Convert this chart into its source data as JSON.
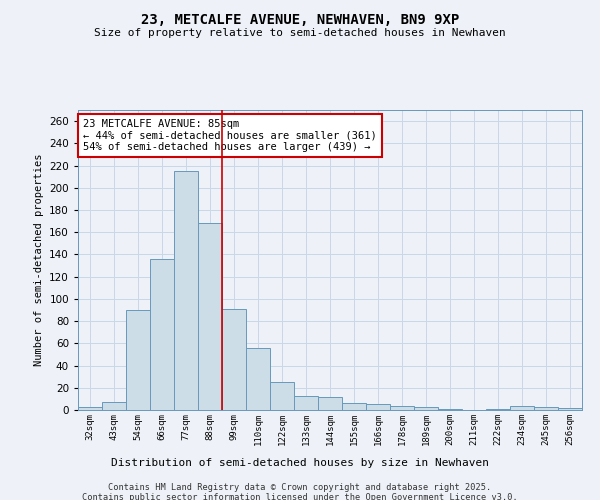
{
  "title": "23, METCALFE AVENUE, NEWHAVEN, BN9 9XP",
  "subtitle": "Size of property relative to semi-detached houses in Newhaven",
  "xlabel": "Distribution of semi-detached houses by size in Newhaven",
  "ylabel": "Number of semi-detached properties",
  "bin_labels": [
    "32sqm",
    "43sqm",
    "54sqm",
    "66sqm",
    "77sqm",
    "88sqm",
    "99sqm",
    "110sqm",
    "122sqm",
    "133sqm",
    "144sqm",
    "155sqm",
    "166sqm",
    "178sqm",
    "189sqm",
    "200sqm",
    "211sqm",
    "222sqm",
    "234sqm",
    "245sqm",
    "256sqm"
  ],
  "bar_values": [
    3,
    7,
    90,
    136,
    215,
    168,
    91,
    56,
    25,
    13,
    12,
    6,
    5,
    4,
    3,
    1,
    0,
    1,
    4,
    3,
    2
  ],
  "bar_color": "#ccdde8",
  "bar_edge_color": "#6699bb",
  "red_line_color": "#cc0000",
  "red_line_bin_index": 5,
  "annotation_title": "23 METCALFE AVENUE: 85sqm",
  "annotation_line1": "← 44% of semi-detached houses are smaller (361)",
  "annotation_line2": "54% of semi-detached houses are larger (439) →",
  "annotation_box_color": "#ffffff",
  "annotation_box_edge": "#cc0000",
  "grid_color": "#c8d8e8",
  "background_color": "#eef2f8",
  "footer_line1": "Contains HM Land Registry data © Crown copyright and database right 2025.",
  "footer_line2": "Contains public sector information licensed under the Open Government Licence v3.0.",
  "ylim": [
    0,
    270
  ],
  "yticks": [
    0,
    20,
    40,
    60,
    80,
    100,
    120,
    140,
    160,
    180,
    200,
    220,
    240,
    260
  ]
}
